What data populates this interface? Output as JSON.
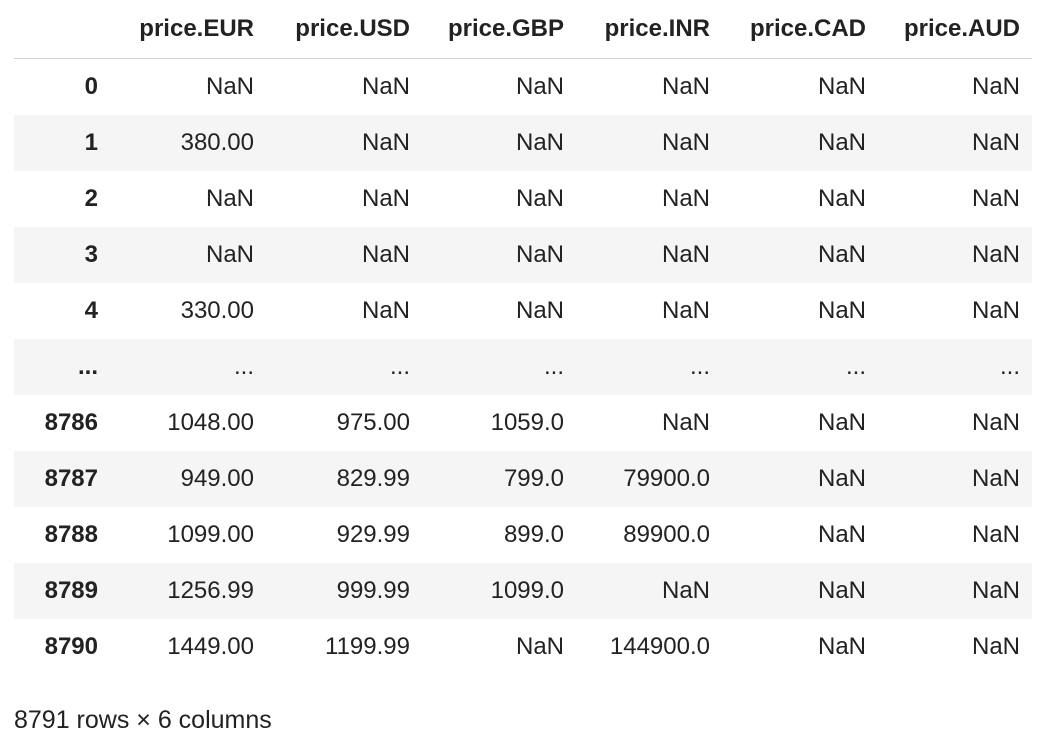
{
  "dataframe": {
    "index_header": "",
    "columns": [
      "price.EUR",
      "price.USD",
      "price.GBP",
      "price.INR",
      "price.CAD",
      "price.AUD"
    ],
    "rows": [
      {
        "index": "0",
        "cells": [
          "NaN",
          "NaN",
          "NaN",
          "NaN",
          "NaN",
          "NaN"
        ]
      },
      {
        "index": "1",
        "cells": [
          "380.00",
          "NaN",
          "NaN",
          "NaN",
          "NaN",
          "NaN"
        ]
      },
      {
        "index": "2",
        "cells": [
          "NaN",
          "NaN",
          "NaN",
          "NaN",
          "NaN",
          "NaN"
        ]
      },
      {
        "index": "3",
        "cells": [
          "NaN",
          "NaN",
          "NaN",
          "NaN",
          "NaN",
          "NaN"
        ]
      },
      {
        "index": "4",
        "cells": [
          "330.00",
          "NaN",
          "NaN",
          "NaN",
          "NaN",
          "NaN"
        ]
      },
      {
        "index": "...",
        "cells": [
          "...",
          "...",
          "...",
          "...",
          "...",
          "..."
        ]
      },
      {
        "index": "8786",
        "cells": [
          "1048.00",
          "975.00",
          "1059.0",
          "NaN",
          "NaN",
          "NaN"
        ]
      },
      {
        "index": "8787",
        "cells": [
          "949.00",
          "829.99",
          "799.0",
          "79900.0",
          "NaN",
          "NaN"
        ]
      },
      {
        "index": "8788",
        "cells": [
          "1099.00",
          "929.99",
          "899.0",
          "89900.0",
          "NaN",
          "NaN"
        ]
      },
      {
        "index": "8789",
        "cells": [
          "1256.99",
          "999.99",
          "1099.0",
          "NaN",
          "NaN",
          "NaN"
        ]
      },
      {
        "index": "8790",
        "cells": [
          "1449.00",
          "1199.99",
          "NaN",
          "144900.0",
          "NaN",
          "NaN"
        ]
      }
    ],
    "shape_text": "8791 rows × 6 columns"
  }
}
